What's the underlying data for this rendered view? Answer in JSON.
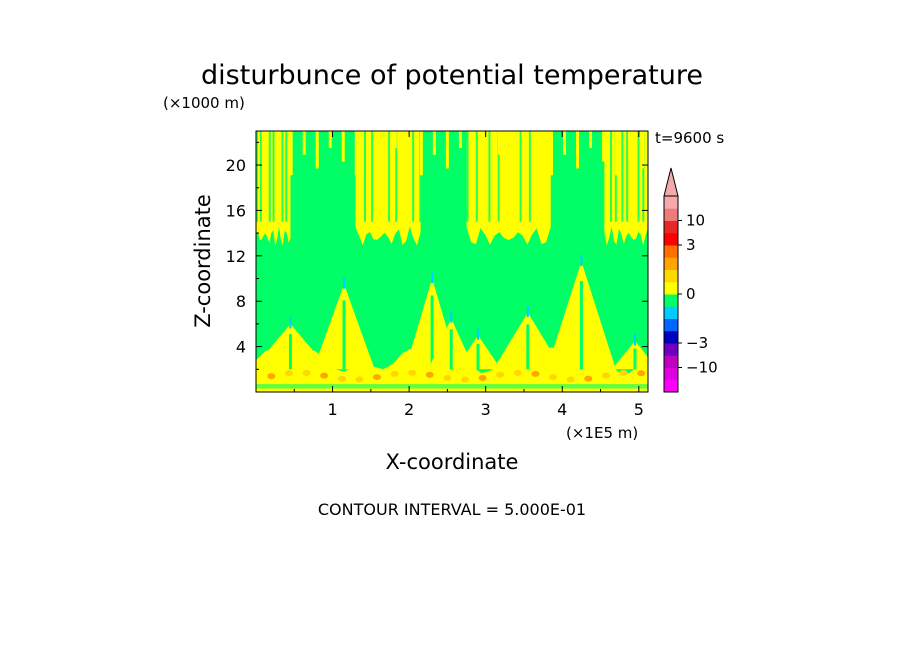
{
  "chart_data": {
    "type": "heatmap",
    "title": "disturbunce of potential temperature",
    "xlabel": "X-coordinate",
    "ylabel": "Z-coordinate",
    "x_unit": "(×1E5 m)",
    "y_unit": "(×1000 m)",
    "time_label": "t=9600 s",
    "contour_note": "CONTOUR INTERVAL = 5.000E-01",
    "xlim": [
      0,
      5.12
    ],
    "ylim": [
      0,
      23
    ],
    "x_ticks": [
      1,
      2,
      3,
      4,
      5
    ],
    "y_ticks": [
      4,
      8,
      12,
      16,
      20
    ],
    "colorbar": {
      "tick_labels": [
        {
          "value": 10,
          "label": "10"
        },
        {
          "value": 3,
          "label": "3"
        },
        {
          "value": 0,
          "label": "0"
        },
        {
          "value": -3,
          "label": "−3"
        },
        {
          "value": -10,
          "label": "−10"
        }
      ],
      "levels": [
        {
          "from": -20,
          "to": -15,
          "color": "#ff00ff"
        },
        {
          "from": -15,
          "to": -10,
          "color": "#e000e0"
        },
        {
          "from": -10,
          "to": -5,
          "color": "#c000c0"
        },
        {
          "from": -5,
          "to": -3,
          "color": "#7000c0"
        },
        {
          "from": -3,
          "to": -2,
          "color": "#0000c0"
        },
        {
          "from": -2,
          "to": -1,
          "color": "#0066ff"
        },
        {
          "from": -1,
          "to": -0.5,
          "color": "#00ccff"
        },
        {
          "from": -0.5,
          "to": 0,
          "color": "#00ff66"
        },
        {
          "from": 0,
          "to": 0.5,
          "color": "#ffff00"
        },
        {
          "from": 0.5,
          "to": 1,
          "color": "#ffd700"
        },
        {
          "from": 1,
          "to": 2,
          "color": "#ffa500"
        },
        {
          "from": 2,
          "to": 3,
          "color": "#ff7000"
        },
        {
          "from": 3,
          "to": 5,
          "color": "#ff0000"
        },
        {
          "from": 5,
          "to": 10,
          "color": "#e82828"
        },
        {
          "from": 10,
          "to": 15,
          "color": "#f07a7a"
        },
        {
          "from": 15,
          "to": 20,
          "color": "#f4aaaa"
        }
      ]
    },
    "field_colors": {
      "negative_small": "#00ff66",
      "positive_small": "#ffff00",
      "positive_mid": "#ffd700",
      "positive_high": "#ffa500",
      "negative_mid": "#00ccff"
    },
    "regions": {
      "upper_warm_blobs": [
        {
          "x0": 0.0,
          "x1": 0.45,
          "z0": 13.5,
          "z1": 23
        },
        {
          "x0": 1.3,
          "x1": 2.15,
          "z0": 13.5,
          "z1": 23
        },
        {
          "x0": 2.75,
          "x1": 3.85,
          "z0": 13.5,
          "z1": 23
        },
        {
          "x0": 4.55,
          "x1": 5.12,
          "z0": 13.5,
          "z1": 23
        }
      ],
      "mid_cold_band": {
        "z0": 8.5,
        "z1": 13.5
      },
      "lower_warm_layer": {
        "z0": 0,
        "z1": 2.5
      },
      "warm_plumes": [
        {
          "x": 0.45,
          "top": 6.0,
          "w": 0.5
        },
        {
          "x": 1.15,
          "top": 9.5,
          "w": 0.4
        },
        {
          "x": 2.3,
          "top": 10.0,
          "w": 0.35
        },
        {
          "x": 2.55,
          "top": 6.5,
          "w": 0.3
        },
        {
          "x": 2.9,
          "top": 5.0,
          "w": 0.3
        },
        {
          "x": 3.55,
          "top": 7.0,
          "w": 0.45
        },
        {
          "x": 4.25,
          "top": 11.5,
          "w": 0.45
        },
        {
          "x": 4.95,
          "top": 4.5,
          "w": 0.3
        }
      ]
    }
  }
}
